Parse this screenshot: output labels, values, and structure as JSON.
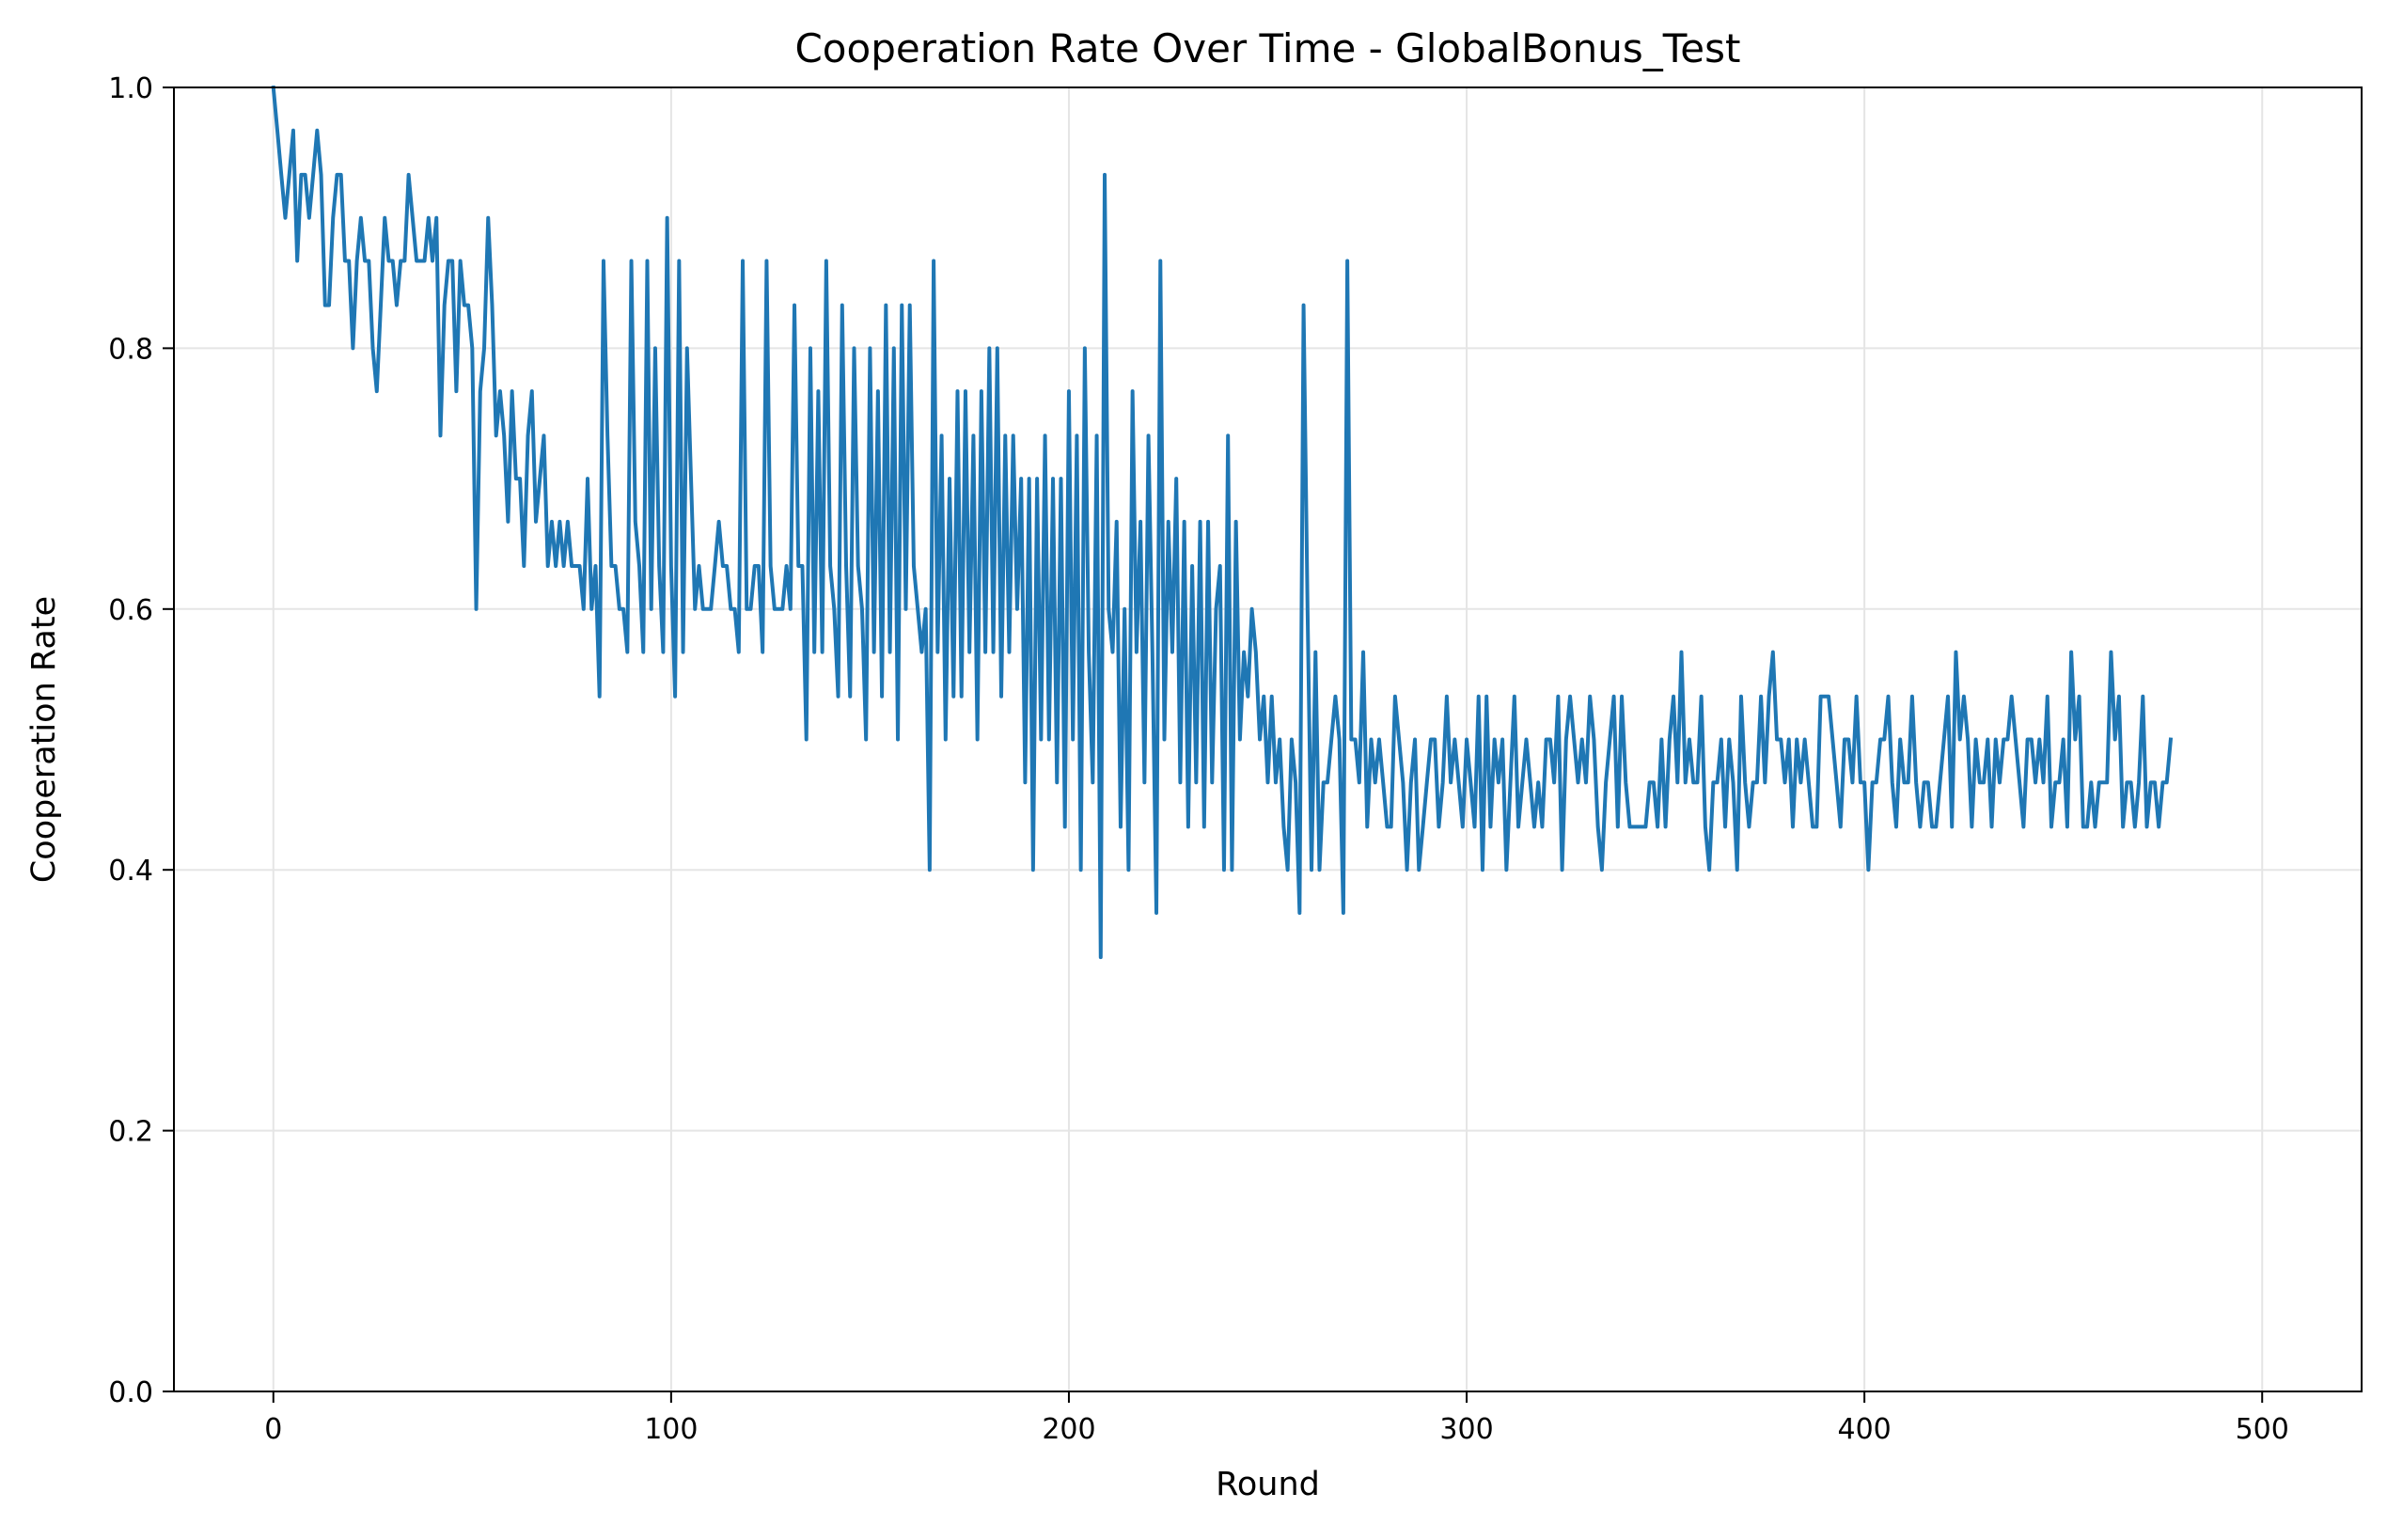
{
  "chart_data": {
    "type": "line",
    "title": "Cooperation Rate Over Time - GlobalBonus_Test",
    "xlabel": "Round",
    "ylabel": "Cooperation Rate",
    "xlim": [
      -25,
      525
    ],
    "ylim": [
      0.0,
      1.0
    ],
    "xticks": [
      0,
      100,
      200,
      300,
      400,
      500
    ],
    "xtick_labels": [
      "0",
      "100",
      "200",
      "300",
      "400",
      "500"
    ],
    "yticks": [
      0.0,
      0.2,
      0.4,
      0.6,
      0.8,
      1.0
    ],
    "ytick_labels": [
      "0.0",
      "0.2",
      "0.4",
      "0.6",
      "0.8",
      "1.0"
    ],
    "grid": true,
    "legend": "none",
    "colors": {
      "line": "#1f77b4",
      "grid": "#e5e5e5",
      "axis": "#000000"
    },
    "series": [
      {
        "x_start": 0,
        "x_step": 1,
        "values": [
          1.0,
          0.967,
          0.933,
          0.9,
          0.933,
          0.967,
          0.867,
          0.933,
          0.933,
          0.9,
          0.933,
          0.967,
          0.933,
          0.833,
          0.833,
          0.9,
          0.933,
          0.933,
          0.867,
          0.867,
          0.8,
          0.867,
          0.9,
          0.867,
          0.867,
          0.8,
          0.767,
          0.833,
          0.9,
          0.867,
          0.867,
          0.833,
          0.867,
          0.867,
          0.933,
          0.9,
          0.867,
          0.867,
          0.867,
          0.9,
          0.867,
          0.9,
          0.733,
          0.833,
          0.867,
          0.867,
          0.767,
          0.867,
          0.833,
          0.833,
          0.8,
          0.6,
          0.767,
          0.8,
          0.9,
          0.833,
          0.733,
          0.767,
          0.733,
          0.667,
          0.767,
          0.7,
          0.7,
          0.633,
          0.733,
          0.767,
          0.667,
          0.7,
          0.733,
          0.633,
          0.667,
          0.633,
          0.667,
          0.633,
          0.667,
          0.633,
          0.633,
          0.633,
          0.6,
          0.7,
          0.6,
          0.633,
          0.533,
          0.867,
          0.733,
          0.633,
          0.633,
          0.6,
          0.6,
          0.567,
          0.867,
          0.667,
          0.633,
          0.567,
          0.867,
          0.6,
          0.8,
          0.633,
          0.567,
          0.9,
          0.633,
          0.533,
          0.867,
          0.567,
          0.8,
          0.7,
          0.6,
          0.633,
          0.6,
          0.6,
          0.6,
          0.633,
          0.667,
          0.633,
          0.633,
          0.6,
          0.6,
          0.567,
          0.867,
          0.6,
          0.6,
          0.633,
          0.633,
          0.567,
          0.867,
          0.633,
          0.6,
          0.6,
          0.6,
          0.633,
          0.6,
          0.833,
          0.633,
          0.633,
          0.5,
          0.8,
          0.567,
          0.767,
          0.567,
          0.867,
          0.633,
          0.6,
          0.533,
          0.833,
          0.633,
          0.533,
          0.8,
          0.633,
          0.6,
          0.5,
          0.8,
          0.567,
          0.767,
          0.533,
          0.833,
          0.567,
          0.8,
          0.5,
          0.833,
          0.6,
          0.833,
          0.633,
          0.6,
          0.567,
          0.6,
          0.4,
          0.867,
          0.567,
          0.733,
          0.5,
          0.7,
          0.533,
          0.767,
          0.533,
          0.767,
          0.567,
          0.733,
          0.5,
          0.767,
          0.567,
          0.8,
          0.567,
          0.8,
          0.533,
          0.733,
          0.567,
          0.733,
          0.6,
          0.7,
          0.467,
          0.7,
          0.4,
          0.7,
          0.5,
          0.733,
          0.5,
          0.7,
          0.467,
          0.7,
          0.433,
          0.767,
          0.5,
          0.733,
          0.4,
          0.8,
          0.567,
          0.467,
          0.733,
          0.333,
          0.933,
          0.6,
          0.567,
          0.667,
          0.433,
          0.6,
          0.4,
          0.767,
          0.567,
          0.667,
          0.467,
          0.733,
          0.567,
          0.367,
          0.867,
          0.5,
          0.667,
          0.567,
          0.7,
          0.467,
          0.667,
          0.433,
          0.633,
          0.467,
          0.667,
          0.433,
          0.667,
          0.467,
          0.6,
          0.633,
          0.4,
          0.733,
          0.4,
          0.667,
          0.5,
          0.567,
          0.533,
          0.6,
          0.567,
          0.5,
          0.533,
          0.467,
          0.533,
          0.467,
          0.5,
          0.433,
          0.4,
          0.5,
          0.467,
          0.367,
          0.833,
          0.6,
          0.4,
          0.567,
          0.4,
          0.467,
          0.467,
          0.5,
          0.533,
          0.5,
          0.367,
          0.867,
          0.5,
          0.5,
          0.467,
          0.567,
          0.433,
          0.5,
          0.467,
          0.5,
          0.467,
          0.433,
          0.433,
          0.533,
          0.5,
          0.467,
          0.4,
          0.467,
          0.5,
          0.4,
          0.433,
          0.467,
          0.5,
          0.5,
          0.433,
          0.467,
          0.533,
          0.467,
          0.5,
          0.467,
          0.433,
          0.5,
          0.467,
          0.433,
          0.533,
          0.4,
          0.533,
          0.433,
          0.5,
          0.467,
          0.5,
          0.4,
          0.467,
          0.533,
          0.433,
          0.467,
          0.5,
          0.467,
          0.433,
          0.467,
          0.433,
          0.5,
          0.5,
          0.467,
          0.533,
          0.4,
          0.5,
          0.533,
          0.5,
          0.467,
          0.5,
          0.467,
          0.533,
          0.5,
          0.433,
          0.4,
          0.467,
          0.5,
          0.533,
          0.433,
          0.533,
          0.467,
          0.433,
          0.433,
          0.433,
          0.433,
          0.433,
          0.467,
          0.467,
          0.433,
          0.5,
          0.433,
          0.5,
          0.533,
          0.467,
          0.567,
          0.467,
          0.5,
          0.467,
          0.467,
          0.533,
          0.433,
          0.4,
          0.467,
          0.467,
          0.5,
          0.433,
          0.5,
          0.467,
          0.4,
          0.533,
          0.467,
          0.433,
          0.467,
          0.467,
          0.533,
          0.467,
          0.533,
          0.567,
          0.5,
          0.5,
          0.467,
          0.5,
          0.433,
          0.5,
          0.467,
          0.5,
          0.467,
          0.433,
          0.433,
          0.533,
          0.533,
          0.533,
          0.5,
          0.467,
          0.433,
          0.5,
          0.5,
          0.467,
          0.533,
          0.467,
          0.467,
          0.4,
          0.467,
          0.467,
          0.5,
          0.5,
          0.533,
          0.467,
          0.433,
          0.5,
          0.467,
          0.467,
          0.533,
          0.467,
          0.433,
          0.467,
          0.467,
          0.433,
          0.433,
          0.467,
          0.5,
          0.533,
          0.433,
          0.567,
          0.5,
          0.533,
          0.5,
          0.433,
          0.5,
          0.467,
          0.467,
          0.5,
          0.433,
          0.5,
          0.467,
          0.5,
          0.5,
          0.533,
          0.5,
          0.467,
          0.433,
          0.5,
          0.5,
          0.467,
          0.5,
          0.467,
          0.533,
          0.433,
          0.467,
          0.467,
          0.5,
          0.433,
          0.567,
          0.5,
          0.533,
          0.433,
          0.433,
          0.467,
          0.433,
          0.467,
          0.467,
          0.467,
          0.567,
          0.5,
          0.533,
          0.433,
          0.467,
          0.467,
          0.433,
          0.467,
          0.533,
          0.433,
          0.467,
          0.467,
          0.433,
          0.467,
          0.467,
          0.5
        ]
      }
    ]
  }
}
